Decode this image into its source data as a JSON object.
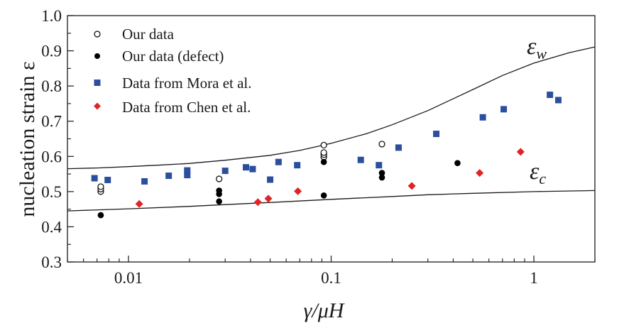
{
  "chart_data": {
    "type": "scatter",
    "title": "",
    "xlabel": "γ/μH",
    "ylabel": "nucleation strain ε",
    "xscale": "log",
    "xlim": [
      0.005,
      2.0
    ],
    "ylim": [
      0.3,
      1.0
    ],
    "xticks": [
      {
        "value": 0.01,
        "label": "0.01"
      },
      {
        "value": 0.1,
        "label": "0.1"
      },
      {
        "value": 1,
        "label": "1"
      }
    ],
    "yticks": [
      {
        "value": 0.3,
        "label": "0.3"
      },
      {
        "value": 0.4,
        "label": "0.4"
      },
      {
        "value": 0.5,
        "label": "0.5"
      },
      {
        "value": 0.6,
        "label": "0.6"
      },
      {
        "value": 0.7,
        "label": "0.7"
      },
      {
        "value": 0.8,
        "label": "0.8"
      },
      {
        "value": 0.9,
        "label": "0.9"
      },
      {
        "value": 1.0,
        "label": "1.0"
      }
    ],
    "legend_position": "top-left",
    "series": [
      {
        "name": "Our data",
        "marker": "open-circle",
        "color": "#000000",
        "points": [
          [
            0.0073,
            0.5
          ],
          [
            0.0073,
            0.507
          ],
          [
            0.0073,
            0.514
          ],
          [
            0.028,
            0.536
          ],
          [
            0.092,
            0.598
          ],
          [
            0.092,
            0.605
          ],
          [
            0.092,
            0.611
          ],
          [
            0.092,
            0.632
          ],
          [
            0.178,
            0.635
          ]
        ]
      },
      {
        "name": "Our data (defect)",
        "marker": "filled-circle",
        "color": "#000000",
        "points": [
          [
            0.0073,
            0.433
          ],
          [
            0.028,
            0.472
          ],
          [
            0.028,
            0.493
          ],
          [
            0.028,
            0.503
          ],
          [
            0.092,
            0.489
          ],
          [
            0.092,
            0.584
          ],
          [
            0.178,
            0.54
          ],
          [
            0.178,
            0.553
          ],
          [
            0.42,
            0.581
          ]
        ]
      },
      {
        "name": "Data from Mora et al.",
        "marker": "square",
        "color": "#2b4f9e",
        "points": [
          [
            0.0068,
            0.538
          ],
          [
            0.0079,
            0.533
          ],
          [
            0.012,
            0.529
          ],
          [
            0.0158,
            0.545
          ],
          [
            0.0195,
            0.547
          ],
          [
            0.0195,
            0.56
          ],
          [
            0.03,
            0.559
          ],
          [
            0.038,
            0.569
          ],
          [
            0.041,
            0.564
          ],
          [
            0.05,
            0.534
          ],
          [
            0.055,
            0.584
          ],
          [
            0.068,
            0.575
          ],
          [
            0.14,
            0.59
          ],
          [
            0.172,
            0.575
          ],
          [
            0.215,
            0.625
          ],
          [
            0.33,
            0.664
          ],
          [
            0.56,
            0.711
          ],
          [
            0.71,
            0.734
          ],
          [
            1.2,
            0.775
          ],
          [
            1.32,
            0.76
          ]
        ]
      },
      {
        "name": "Data from Chen et al.",
        "marker": "diamond",
        "color": "#e02424",
        "points": [
          [
            0.0113,
            0.465
          ],
          [
            0.0435,
            0.47
          ],
          [
            0.049,
            0.48
          ],
          [
            0.0685,
            0.501
          ],
          [
            0.25,
            0.516
          ],
          [
            0.54,
            0.553
          ],
          [
            0.86,
            0.613
          ]
        ]
      }
    ],
    "curves": [
      {
        "name": "ε_w",
        "label": "ε",
        "subscript": "w",
        "x": [
          0.005,
          0.007,
          0.01,
          0.015,
          0.02,
          0.03,
          0.05,
          0.07,
          0.1,
          0.15,
          0.2,
          0.3,
          0.5,
          0.7,
          1.0,
          1.5,
          2.0
        ],
        "y": [
          0.565,
          0.567,
          0.571,
          0.576,
          0.58,
          0.589,
          0.603,
          0.617,
          0.637,
          0.665,
          0.69,
          0.73,
          0.79,
          0.83,
          0.865,
          0.895,
          0.911
        ]
      },
      {
        "name": "ε_c",
        "label": "ε",
        "subscript": "c",
        "x": [
          0.005,
          0.01,
          0.02,
          0.03,
          0.05,
          0.1,
          0.2,
          0.3,
          0.5,
          1.0,
          2.0
        ],
        "y": [
          0.445,
          0.451,
          0.458,
          0.463,
          0.469,
          0.478,
          0.486,
          0.491,
          0.495,
          0.5,
          0.503
        ]
      }
    ]
  }
}
